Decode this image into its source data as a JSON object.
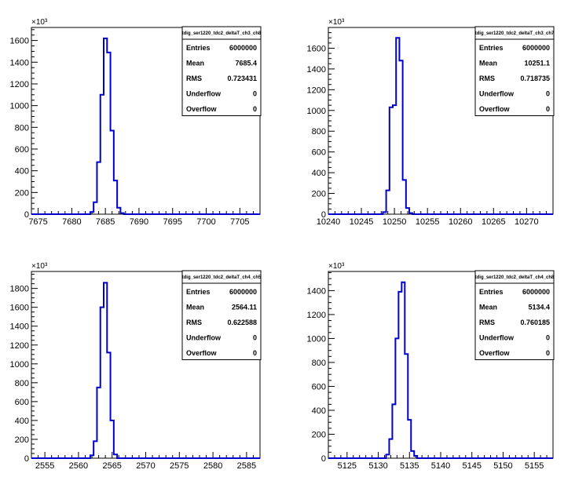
{
  "chart_data": [
    {
      "type": "histogram",
      "stats": {
        "title": "tdig_ser1220_tdc2_deltaT_ch3_ch8",
        "rows": [
          {
            "label": "Entries",
            "value": "6000000"
          },
          {
            "label": "Mean",
            "value": "7685.4"
          },
          {
            "label": "RMS",
            "value": "0.723431"
          },
          {
            "label": "Underflow",
            "value": "0"
          },
          {
            "label": "Overflow",
            "value": "0"
          }
        ]
      },
      "exponent_label": "×10³",
      "xlim": [
        7674,
        7708
      ],
      "ylim": [
        0,
        1720
      ],
      "x_ticks": [
        7675,
        7680,
        7685,
        7690,
        7695,
        7700,
        7705
      ],
      "x_tick_labels": [
        "7675",
        "7680",
        "7685",
        "7690",
        "7695",
        "7700",
        "7705"
      ],
      "y_ticks": [
        0,
        200,
        400,
        600,
        800,
        1000,
        1200,
        1400,
        1600
      ],
      "y_tick_labels": [
        "0",
        "200",
        "400",
        "600",
        "800",
        "1000",
        "1200",
        "1400",
        "1600"
      ],
      "bin_width": 0.5,
      "bins": [
        {
          "x": 7683.0,
          "y": 20
        },
        {
          "x": 7683.5,
          "y": 110
        },
        {
          "x": 7684.0,
          "y": 480
        },
        {
          "x": 7684.5,
          "y": 1100
        },
        {
          "x": 7685.0,
          "y": 1620
        },
        {
          "x": 7685.5,
          "y": 1490
        },
        {
          "x": 7686.0,
          "y": 770
        },
        {
          "x": 7686.5,
          "y": 310
        },
        {
          "x": 7687.0,
          "y": 60
        },
        {
          "x": 7687.5,
          "y": 10
        }
      ]
    },
    {
      "type": "histogram",
      "stats": {
        "title": "tdig_ser1220_tdc2_deltaT_ch3_ch7",
        "rows": [
          {
            "label": "Entries",
            "value": "6000000"
          },
          {
            "label": "Mean",
            "value": "10251.1"
          },
          {
            "label": "RMS",
            "value": "0.718735"
          },
          {
            "label": "Underflow",
            "value": "0"
          },
          {
            "label": "Overflow",
            "value": "0"
          }
        ]
      },
      "exponent_label": "×10³",
      "xlim": [
        10240,
        10274
      ],
      "ylim": [
        0,
        1800
      ],
      "x_ticks": [
        10240,
        10245,
        10250,
        10255,
        10260,
        10265,
        10270
      ],
      "x_tick_labels": [
        "10240",
        "10245",
        "10250",
        "10255",
        "10260",
        "10265",
        "10270"
      ],
      "y_ticks": [
        0,
        200,
        400,
        600,
        800,
        1000,
        1200,
        1400,
        1600
      ],
      "y_tick_labels": [
        "0",
        "200",
        "400",
        "600",
        "800",
        "1000",
        "1200",
        "1400",
        "1600"
      ],
      "bin_width": 0.5,
      "bins": [
        {
          "x": 10248.5,
          "y": 20
        },
        {
          "x": 10249.0,
          "y": 230
        },
        {
          "x": 10249.5,
          "y": 1030
        },
        {
          "x": 10250.0,
          "y": 1050
        },
        {
          "x": 10250.5,
          "y": 1700
        },
        {
          "x": 10251.0,
          "y": 1480
        },
        {
          "x": 10251.5,
          "y": 330
        },
        {
          "x": 10252.0,
          "y": 60
        },
        {
          "x": 10252.5,
          "y": 10
        }
      ]
    },
    {
      "type": "histogram",
      "stats": {
        "title": "tdig_ser1220_tdc2_deltaT_ch4_ch5",
        "rows": [
          {
            "label": "Entries",
            "value": "6000000"
          },
          {
            "label": "Mean",
            "value": "2564.11"
          },
          {
            "label": "RMS",
            "value": "0.622588"
          },
          {
            "label": "Underflow",
            "value": "0"
          },
          {
            "label": "Overflow",
            "value": "0"
          }
        ]
      },
      "exponent_label": "×10³",
      "xlim": [
        2553,
        2587
      ],
      "ylim": [
        0,
        1980
      ],
      "x_ticks": [
        2555,
        2560,
        2565,
        2570,
        2575,
        2580,
        2585
      ],
      "x_tick_labels": [
        "2555",
        "2560",
        "2565",
        "2570",
        "2575",
        "2580",
        "2585"
      ],
      "y_ticks": [
        0,
        200,
        400,
        600,
        800,
        1000,
        1200,
        1400,
        1600,
        1800
      ],
      "y_tick_labels": [
        "0",
        "200",
        "400",
        "600",
        "800",
        "1000",
        "1200",
        "1400",
        "1600",
        "1800"
      ],
      "bin_width": 0.5,
      "bins": [
        {
          "x": 2562.0,
          "y": 30
        },
        {
          "x": 2562.5,
          "y": 180
        },
        {
          "x": 2563.0,
          "y": 750
        },
        {
          "x": 2563.5,
          "y": 1600
        },
        {
          "x": 2564.0,
          "y": 1860
        },
        {
          "x": 2564.5,
          "y": 1120
        },
        {
          "x": 2565.0,
          "y": 400
        },
        {
          "x": 2565.5,
          "y": 40
        }
      ]
    },
    {
      "type": "histogram",
      "stats": {
        "title": "tdig_ser1220_tdc2_deltaT_ch4_ch8",
        "rows": [
          {
            "label": "Entries",
            "value": "6000000"
          },
          {
            "label": "Mean",
            "value": "5134.4"
          },
          {
            "label": "RMS",
            "value": "0.760185"
          },
          {
            "label": "Underflow",
            "value": "0"
          },
          {
            "label": "Overflow",
            "value": "0"
          }
        ]
      },
      "exponent_label": "×10³",
      "xlim": [
        5122,
        5158
      ],
      "ylim": [
        0,
        1560
      ],
      "x_ticks": [
        5125,
        5130,
        5135,
        5140,
        5145,
        5150,
        5155
      ],
      "x_tick_labels": [
        "5125",
        "5130",
        "5135",
        "5140",
        "5145",
        "5150",
        "5155"
      ],
      "y_ticks": [
        0,
        200,
        400,
        600,
        800,
        1000,
        1200,
        1400
      ],
      "y_tick_labels": [
        "0",
        "200",
        "400",
        "600",
        "800",
        "1000",
        "1200",
        "1400"
      ],
      "bin_width": 0.5,
      "bins": [
        {
          "x": 5131.5,
          "y": 30
        },
        {
          "x": 5132.0,
          "y": 160
        },
        {
          "x": 5132.5,
          "y": 450
        },
        {
          "x": 5133.0,
          "y": 1000
        },
        {
          "x": 5133.5,
          "y": 1390
        },
        {
          "x": 5134.0,
          "y": 1470
        },
        {
          "x": 5134.5,
          "y": 870
        },
        {
          "x": 5135.0,
          "y": 320
        },
        {
          "x": 5135.5,
          "y": 60
        },
        {
          "x": 5136.0,
          "y": 20
        }
      ]
    }
  ]
}
